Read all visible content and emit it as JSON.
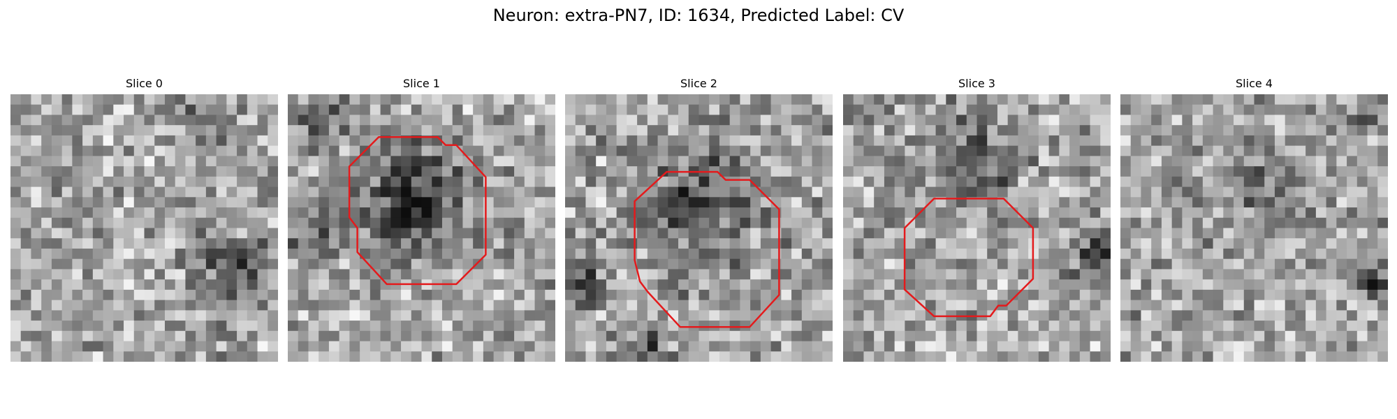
{
  "figure": {
    "title": "Neuron: extra-PN7, ID: 1634, Predicted Label: CV"
  },
  "panels": [
    {
      "title": "Slice 0",
      "has_contour": false
    },
    {
      "title": "Slice 1",
      "has_contour": true
    },
    {
      "title": "Slice 2",
      "has_contour": true
    },
    {
      "title": "Slice 3",
      "has_contour": true
    },
    {
      "title": "Slice 4",
      "has_contour": false
    }
  ],
  "colors": {
    "contour": "#e41a1c",
    "background": "#ffffff"
  },
  "colormap": "grayscale"
}
